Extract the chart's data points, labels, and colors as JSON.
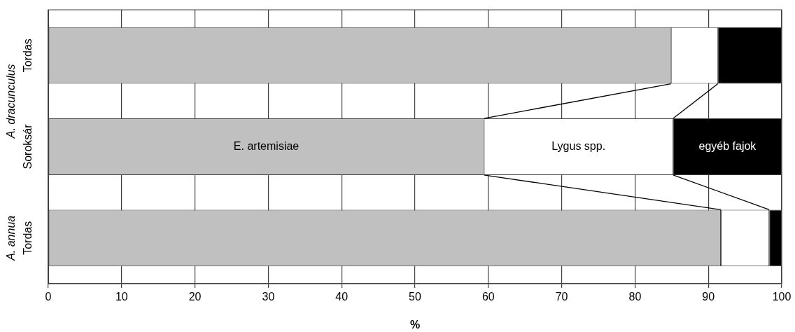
{
  "chart_data": {
    "type": "bar",
    "orientation": "horizontal",
    "stacked": true,
    "xlabel": "%",
    "categories": [
      "Tordas",
      "Soroksár",
      "Tordas"
    ],
    "series": [
      {
        "name": "E. artemisiae",
        "color": "#c0c0c0",
        "values": [
          84.9,
          59.4,
          91.7
        ]
      },
      {
        "name": "Lygus spp.",
        "color": "#ffffff",
        "values": [
          6.4,
          25.8,
          6.6
        ]
      },
      {
        "name": "egyéb fajok",
        "color": "#000000",
        "values": [
          8.7,
          14.8,
          1.7
        ]
      }
    ],
    "xlim": [
      0,
      100
    ],
    "xticks": [
      0,
      10,
      20,
      30,
      40,
      50,
      60,
      70,
      80,
      90,
      100
    ],
    "grid": "x",
    "legend": false,
    "annotations": [
      "A. dracunculus",
      "A. annua"
    ]
  }
}
